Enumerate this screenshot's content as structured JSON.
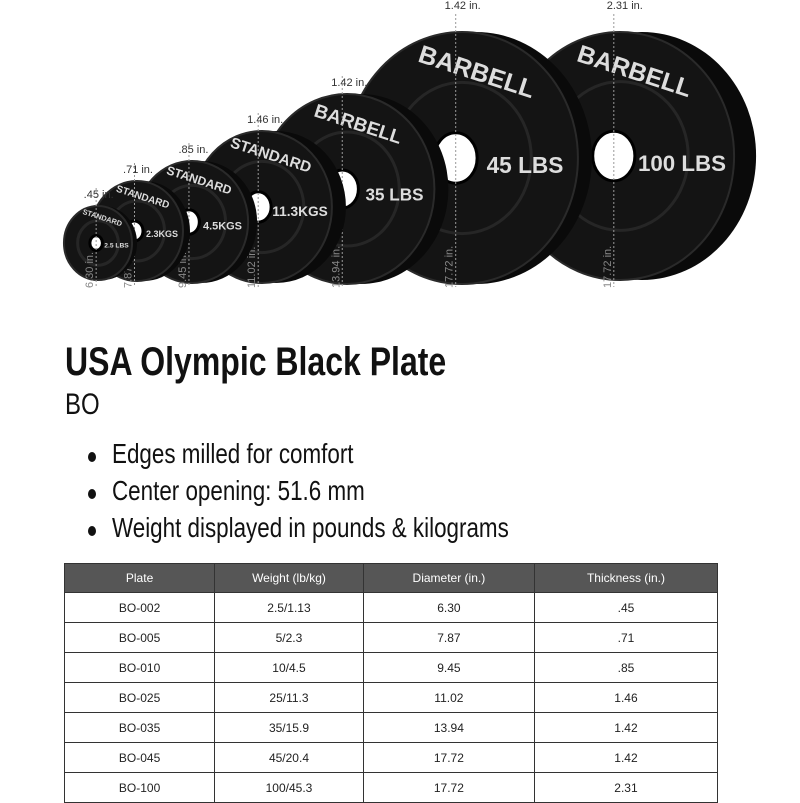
{
  "product": {
    "title": "USA Olympic Black Plate",
    "subtitle": "BO",
    "features": [
      "Edges milled for comfort",
      "Center opening: 51.6 mm",
      "Weight displayed in pounds & kilograms"
    ]
  },
  "plates_image": {
    "plates": [
      {
        "thickness": ".45 in.",
        "diameter": "6.30 in.",
        "brand": "STANDARD",
        "weight": "2.5 LBS"
      },
      {
        "thickness": ".71 in.",
        "diameter": "7.87 in.",
        "brand": "STANDARD",
        "weight": "2.3KGS"
      },
      {
        "thickness": ".85 in.",
        "diameter": "9.45 in.",
        "brand": "STANDARD",
        "weight": "4.5KGS"
      },
      {
        "thickness": "1.46 in.",
        "diameter": "11.02 in.",
        "brand": "STANDARD",
        "weight": "11.3KGS"
      },
      {
        "thickness": "1.42 in.",
        "diameter": "13.94 in.",
        "brand": "BARBELL",
        "weight": "35 LBS"
      },
      {
        "thickness": "1.42 in.",
        "diameter": "17.72 in.",
        "brand": "BARBELL",
        "weight": "45 LBS"
      },
      {
        "thickness": "2.31 in.",
        "diameter": "17.72 in.",
        "brand": "BARBELL",
        "weight": "100 LBS"
      }
    ]
  },
  "table": {
    "headers": [
      "Plate",
      "Weight (lb/kg)",
      "Diameter (in.)",
      "Thickness (in.)"
    ],
    "rows": [
      [
        "BO-002",
        "2.5/1.13",
        "6.30",
        ".45"
      ],
      [
        "BO-005",
        "5/2.3",
        "7.87",
        ".71"
      ],
      [
        "BO-010",
        "10/4.5",
        "9.45",
        ".85"
      ],
      [
        "BO-025",
        "25/11.3",
        "11.02",
        "1.46"
      ],
      [
        "BO-035",
        "35/15.9",
        "13.94",
        "1.42"
      ],
      [
        "BO-045",
        "45/20.4",
        "17.72",
        "1.42"
      ],
      [
        "BO-100",
        "100/45.3",
        "17.72",
        "2.31"
      ]
    ]
  },
  "colors": {
    "plate": "#141414",
    "header_bg": "#565656",
    "dim_line": "#999999"
  }
}
